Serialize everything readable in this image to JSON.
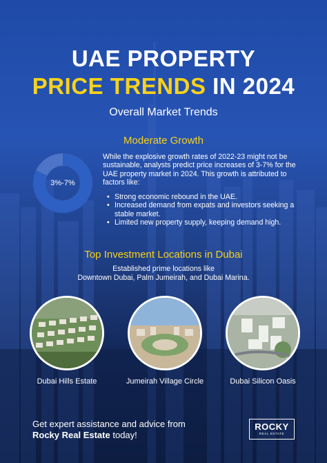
{
  "header": {
    "title_line1": "UAE PROPERTY",
    "title_line2_accent": "PRICE TRENDS",
    "title_line2_rest": " IN 2024",
    "subtitle": "Overall Market Trends"
  },
  "growth": {
    "heading": "Moderate Growth",
    "donut_label": "3%-7%",
    "paragraph": "While the explosive growth rates of 2022-23 might not be sustainable, analysts predict price increases of 3-7% for the UAE property market in 2024. This growth is attributed to factors like:",
    "bullets": [
      "Strong economic rebound in the UAE.",
      "Increased demand from expats and investors seeking a stable market.",
      "Limited new property supply, keeping demand high."
    ]
  },
  "locations": {
    "heading": "Top Investment Locations in Dubai",
    "text_line1": "Established prime locations like",
    "text_line2": "Downtown Dubai, Palm Jumeirah, and Dubai Marina.",
    "items": [
      {
        "caption": "Dubai Hills Estate"
      },
      {
        "caption": "Jumeirah Village Circle"
      },
      {
        "caption": "Dubai Silicon Oasis"
      }
    ]
  },
  "cta": {
    "line1": "Get expert assistance and advice from",
    "brand": "Rocky Real Estate",
    "line2_rest": " today!"
  },
  "logo": {
    "main": "ROCKY",
    "sub": "REAL ESTATE"
  },
  "colors": {
    "accent": "#f7d21b",
    "background_top": "#1f4aa8",
    "background_bottom": "#0c1c40",
    "donut_ring": "#2e5fc2",
    "donut_track": "#6f93df"
  }
}
